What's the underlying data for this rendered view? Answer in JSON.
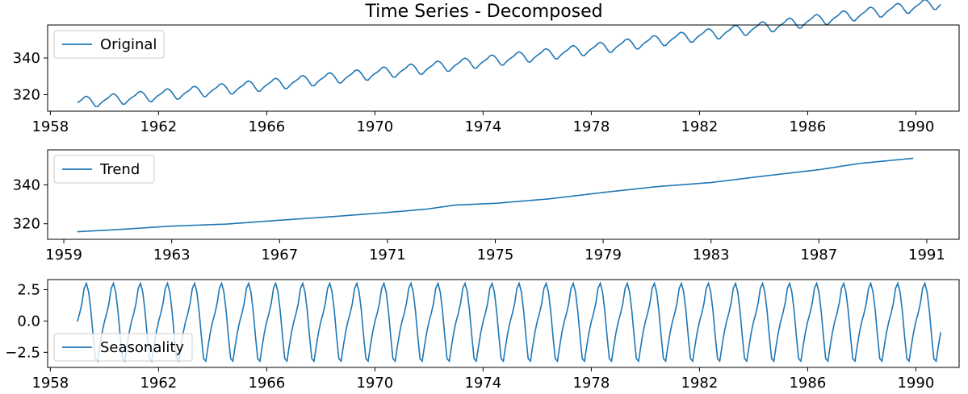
{
  "title": "Time Series - Decomposed",
  "colors": {
    "series": "#1f77b4",
    "axes": "#000000",
    "legend_border": "#cccccc"
  },
  "chart_data": [
    {
      "type": "line",
      "name": "Original",
      "legend": "Original",
      "legend_position": "upper-left",
      "grid": false,
      "xlim": [
        1957.9,
        1991.6
      ],
      "ylim": [
        311,
        358
      ],
      "x_ticks": [
        1958,
        1962,
        1966,
        1970,
        1974,
        1978,
        1982,
        1986,
        1990
      ],
      "y_ticks": [
        320,
        340
      ],
      "x_range": [
        1959.0,
        1990.917
      ],
      "base": 315.4,
      "slope": 1.304,
      "curvature": 0.0125,
      "seasonal_amplitude": 3.0
    },
    {
      "type": "line",
      "name": "Trend",
      "legend": "Trend",
      "legend_position": "upper-left",
      "grid": false,
      "xlim": [
        1958.4,
        1992.2
      ],
      "ylim": [
        312,
        358
      ],
      "x_ticks": [
        1959,
        1963,
        1967,
        1971,
        1975,
        1979,
        1983,
        1987,
        1991
      ],
      "y_ticks": [
        320,
        340
      ],
      "x_range": [
        1959.5,
        1990.583
      ],
      "trend_points": [
        [
          1959.5,
          315.9
        ],
        [
          1961.0,
          317.0
        ],
        [
          1963.0,
          318.8
        ],
        [
          1965.0,
          319.8
        ],
        [
          1967.0,
          321.8
        ],
        [
          1969.0,
          323.7
        ],
        [
          1971.0,
          325.8
        ],
        [
          1972.5,
          327.6
        ],
        [
          1973.5,
          329.6
        ],
        [
          1975.0,
          330.5
        ],
        [
          1977.0,
          332.8
        ],
        [
          1979.0,
          336.1
        ],
        [
          1981.0,
          339.1
        ],
        [
          1983.0,
          341.2
        ],
        [
          1985.0,
          344.6
        ],
        [
          1987.0,
          347.8
        ],
        [
          1988.5,
          351.0
        ],
        [
          1990.583,
          353.8
        ]
      ]
    },
    {
      "type": "line",
      "name": "Seasonality",
      "legend": "Seasonality",
      "legend_position": "lower-left",
      "grid": false,
      "xlim": [
        1957.9,
        1991.6
      ],
      "ylim": [
        -3.7,
        3.3
      ],
      "x_ticks": [
        1958,
        1962,
        1966,
        1970,
        1974,
        1978,
        1982,
        1986,
        1990
      ],
      "y_ticks": [
        2.5,
        0.0,
        -2.5
      ],
      "y_tick_labels": [
        "2.5",
        "0.0",
        "−2.5"
      ],
      "x_range": [
        1959.0,
        1990.917
      ],
      "monthly_pattern": [
        -0.05,
        0.6,
        1.4,
        2.6,
        3.0,
        2.3,
        0.8,
        -1.2,
        -3.0,
        -3.2,
        -2.0,
        -0.9
      ]
    }
  ]
}
